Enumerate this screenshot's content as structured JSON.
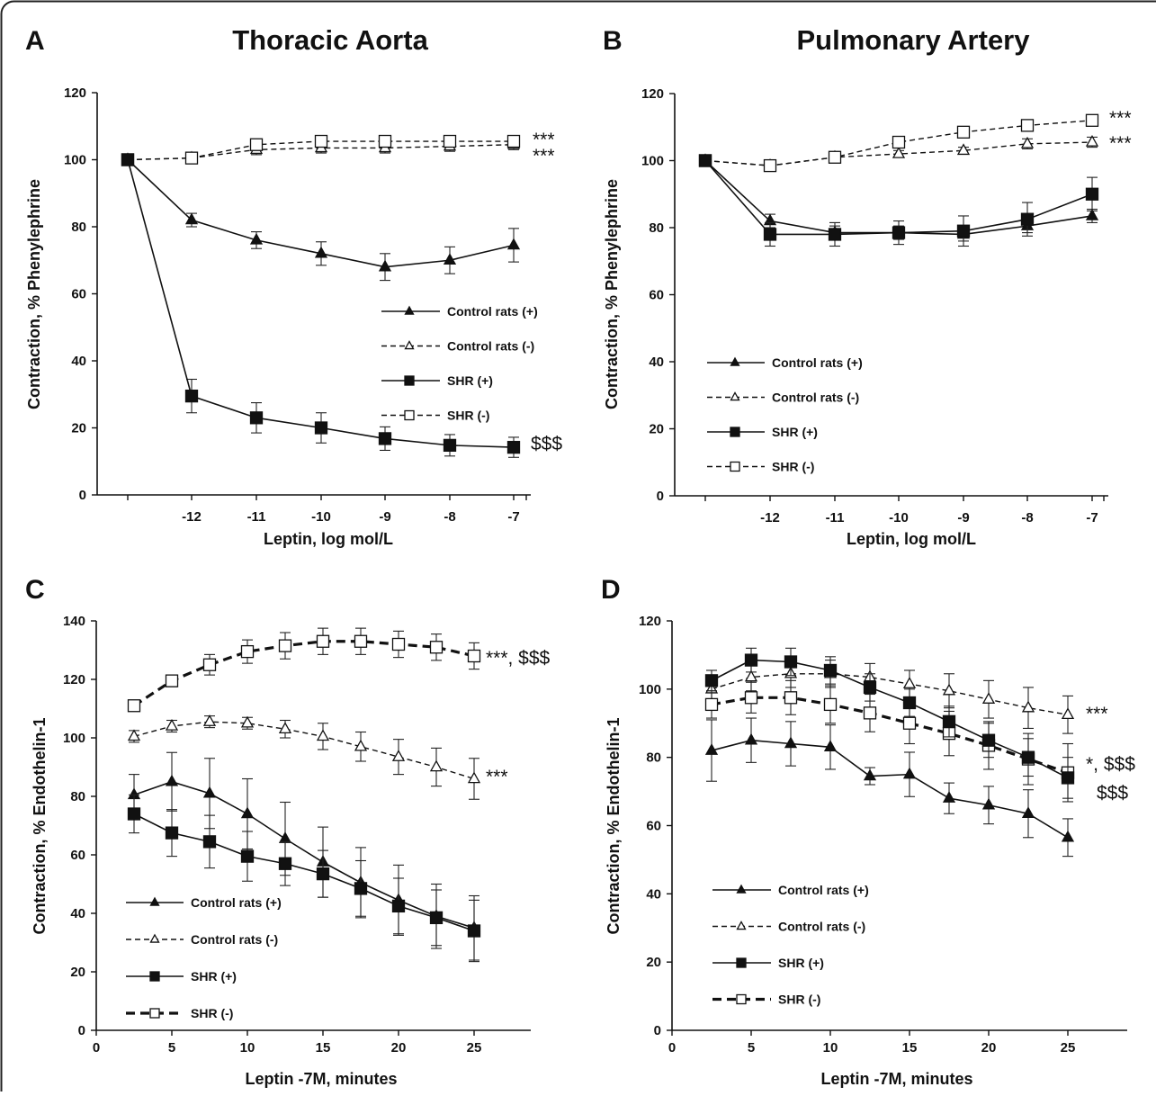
{
  "chart_data": [
    {
      "panel": "A",
      "type": "line",
      "title": "Thoracic Aorta",
      "xlabel": "Leptin, log mol/L",
      "ylabel": "Contraction, % Phenylephrine",
      "x_tick_labels": [
        "-12",
        "-11",
        "-10",
        "-9",
        "-8",
        "-7"
      ],
      "x": [
        "",
        "-12",
        "-11",
        "-10",
        "-9",
        "-8",
        "-7"
      ],
      "ylim": [
        0,
        120
      ],
      "y_ticks": [
        0,
        20,
        40,
        60,
        80,
        100,
        120
      ],
      "legend": "inside lower-right",
      "series": [
        {
          "name": "Control rats (+)",
          "line": "solid",
          "marker": "triangle-filled",
          "values": [
            100,
            82,
            76,
            72,
            68,
            70,
            74.5
          ],
          "errors": [
            0,
            2,
            2.5,
            3.5,
            4,
            4,
            5
          ]
        },
        {
          "name": "Control rats (-)",
          "line": "dashed",
          "marker": "triangle-open",
          "values": [
            100,
            100.5,
            103,
            103.5,
            103.5,
            104,
            104.5
          ],
          "errors": [
            0,
            1,
            1.5,
            1.5,
            1.5,
            1.5,
            1.5
          ]
        },
        {
          "name": "SHR (+)",
          "line": "solid",
          "marker": "square-filled",
          "values": [
            100,
            29.5,
            23,
            20,
            16.8,
            14.8,
            14.2
          ],
          "errors": [
            0,
            5,
            4.5,
            4.5,
            3.5,
            3.2,
            3
          ]
        },
        {
          "name": "SHR (-)",
          "line": "dashed",
          "marker": "square-open",
          "values": [
            100,
            100.5,
            104.5,
            105.5,
            105.5,
            105.5,
            105.5
          ],
          "errors": [
            0,
            1,
            1,
            1,
            1,
            1,
            1
          ]
        }
      ],
      "annotations": [
        {
          "text": "***",
          "series": "SHR (-)"
        },
        {
          "text": "***",
          "series": "Control rats (-)"
        },
        {
          "text": "$$$",
          "series": "SHR (+)"
        }
      ]
    },
    {
      "panel": "B",
      "type": "line",
      "title": "Pulmonary Artery",
      "xlabel": "Leptin, log mol/L",
      "ylabel": "Contraction, % Phenylephrine",
      "x_tick_labels": [
        "-12",
        "-11",
        "-10",
        "-9",
        "-8",
        "-7"
      ],
      "x": [
        "",
        "-12",
        "-11",
        "-10",
        "-9",
        "-8",
        "-7"
      ],
      "ylim": [
        0,
        120
      ],
      "y_ticks": [
        0,
        20,
        40,
        60,
        80,
        100,
        120
      ],
      "legend": "inside lower-left",
      "series": [
        {
          "name": "Control rats (+)",
          "line": "solid",
          "marker": "triangle-filled",
          "values": [
            100,
            82,
            78.5,
            78.5,
            78,
            80.5,
            83.5
          ],
          "errors": [
            0,
            2,
            2,
            2,
            2,
            2,
            2
          ]
        },
        {
          "name": "Control rats (-)",
          "line": "dashed",
          "marker": "triangle-open",
          "values": [
            100,
            98.5,
            101,
            102,
            103,
            105,
            105.5
          ],
          "errors": [
            0,
            1,
            1,
            1,
            1,
            1.5,
            1.5
          ]
        },
        {
          "name": "SHR (+)",
          "line": "solid",
          "marker": "square-filled",
          "values": [
            100,
            78,
            78,
            78.5,
            79,
            82.5,
            90
          ],
          "errors": [
            0,
            3.5,
            3.5,
            3.5,
            4.5,
            5,
            5
          ]
        },
        {
          "name": "SHR (-)",
          "line": "dashed",
          "marker": "square-open",
          "values": [
            100,
            98.5,
            101,
            105.5,
            108.5,
            110.5,
            112
          ],
          "errors": [
            0,
            1,
            1,
            1,
            1,
            1.5,
            1.5
          ]
        }
      ],
      "annotations": [
        {
          "text": "***",
          "series": "SHR (-)"
        },
        {
          "text": "***",
          "series": "Control rats (-)"
        }
      ]
    },
    {
      "panel": "C",
      "type": "line",
      "xlabel": "Leptin -7M, minutes",
      "ylabel": "Contraction, % Endothelin-1",
      "x": [
        2.5,
        5,
        7.5,
        10,
        12.5,
        15,
        17.5,
        20,
        22.5,
        25
      ],
      "xlim": [
        0,
        28.75
      ],
      "x_ticks": [
        0,
        5,
        10,
        15,
        20,
        25
      ],
      "ylim": [
        0,
        140
      ],
      "y_ticks": [
        0,
        20,
        40,
        60,
        80,
        100,
        120,
        140
      ],
      "legend": "inside lower-left",
      "series": [
        {
          "name": "Control rats (+)",
          "line": "solid",
          "marker": "triangle-filled",
          "values": [
            80.5,
            85,
            81,
            74,
            65.5,
            57.5,
            50.5,
            44.5,
            39,
            35
          ],
          "errors": [
            7,
            10,
            12,
            12,
            12.5,
            12,
            12,
            12,
            11,
            11
          ]
        },
        {
          "name": "Control rats (-)",
          "line": "dashed",
          "marker": "triangle-open",
          "values": [
            100.5,
            104,
            105.5,
            105,
            103,
            100.5,
            97,
            93.5,
            90,
            86
          ],
          "errors": [
            2,
            2,
            2,
            2,
            3,
            4.5,
            5,
            6,
            6.5,
            7
          ]
        },
        {
          "name": "SHR (+)",
          "line": "solid",
          "marker": "square-filled",
          "values": [
            74,
            67.5,
            64.5,
            59.5,
            57,
            53.5,
            48.5,
            42.5,
            38.5,
            34
          ],
          "errors": [
            6.5,
            8,
            9,
            8.5,
            7.5,
            8,
            9.5,
            9.5,
            9.5,
            10.5
          ]
        },
        {
          "name": "SHR (-)",
          "line": "dashed-bold",
          "marker": "square-open",
          "values": [
            111,
            119.5,
            125,
            129.5,
            131.5,
            133,
            133,
            132,
            131,
            128
          ],
          "errors": [
            1.5,
            2,
            3.5,
            4,
            4.5,
            4.5,
            4.5,
            4.5,
            4.5,
            4.5
          ]
        }
      ],
      "annotations": [
        {
          "text": "***, $$$",
          "series": "SHR (-)"
        },
        {
          "text": "***",
          "series": "Control rats (-)"
        }
      ]
    },
    {
      "panel": "D",
      "type": "line",
      "xlabel": "Leptin -7M, minutes",
      "ylabel": "Contraction, % Endothelin-1",
      "x": [
        2.5,
        5,
        7.5,
        10,
        12.5,
        15,
        17.5,
        20,
        22.5,
        25
      ],
      "xlim": [
        0,
        28.75
      ],
      "x_ticks": [
        0,
        5,
        10,
        15,
        20,
        25
      ],
      "ylim": [
        0,
        120
      ],
      "y_ticks": [
        0,
        20,
        40,
        60,
        80,
        100,
        120
      ],
      "legend": "inside lower-left",
      "series": [
        {
          "name": "Control rats (+)",
          "line": "solid",
          "marker": "triangle-filled",
          "values": [
            82,
            85,
            84,
            83,
            74.5,
            75,
            68,
            66,
            63.5,
            56.5
          ],
          "errors": [
            9,
            6.5,
            6.5,
            6.5,
            2.5,
            6.5,
            4.5,
            5.5,
            7,
            5.5
          ]
        },
        {
          "name": "Control rats (-)",
          "line": "dashed",
          "marker": "triangle-open",
          "values": [
            100,
            103.5,
            104.5,
            104.5,
            103.5,
            101.5,
            99.5,
            97,
            94.5,
            92.5
          ],
          "errors": [
            3.5,
            4,
            4,
            4,
            4,
            4,
            5,
            5.5,
            6,
            5.5
          ]
        },
        {
          "name": "SHR (+)",
          "line": "solid",
          "marker": "square-filled",
          "values": [
            102.5,
            108.5,
            108,
            105.5,
            100.5,
            96,
            90.5,
            85,
            80,
            74
          ],
          "errors": [
            3,
            3.5,
            4,
            4,
            4,
            4,
            4.5,
            5,
            5.5,
            6
          ]
        },
        {
          "name": "SHR (-)",
          "line": "dashed-bold",
          "marker": "square-open",
          "values": [
            95.5,
            97.5,
            97.5,
            95.5,
            93,
            90,
            87,
            83.5,
            79.5,
            75.5
          ],
          "errors": [
            4,
            4.5,
            5,
            5.5,
            5.5,
            6,
            6.5,
            7,
            7.5,
            8.5
          ]
        }
      ],
      "annotations": [
        {
          "text": "***",
          "series": "Control rats (-)"
        },
        {
          "text": "*, $$$",
          "series": "SHR (-)"
        },
        {
          "text": "$$$",
          "series": "SHR (+)"
        }
      ]
    }
  ]
}
